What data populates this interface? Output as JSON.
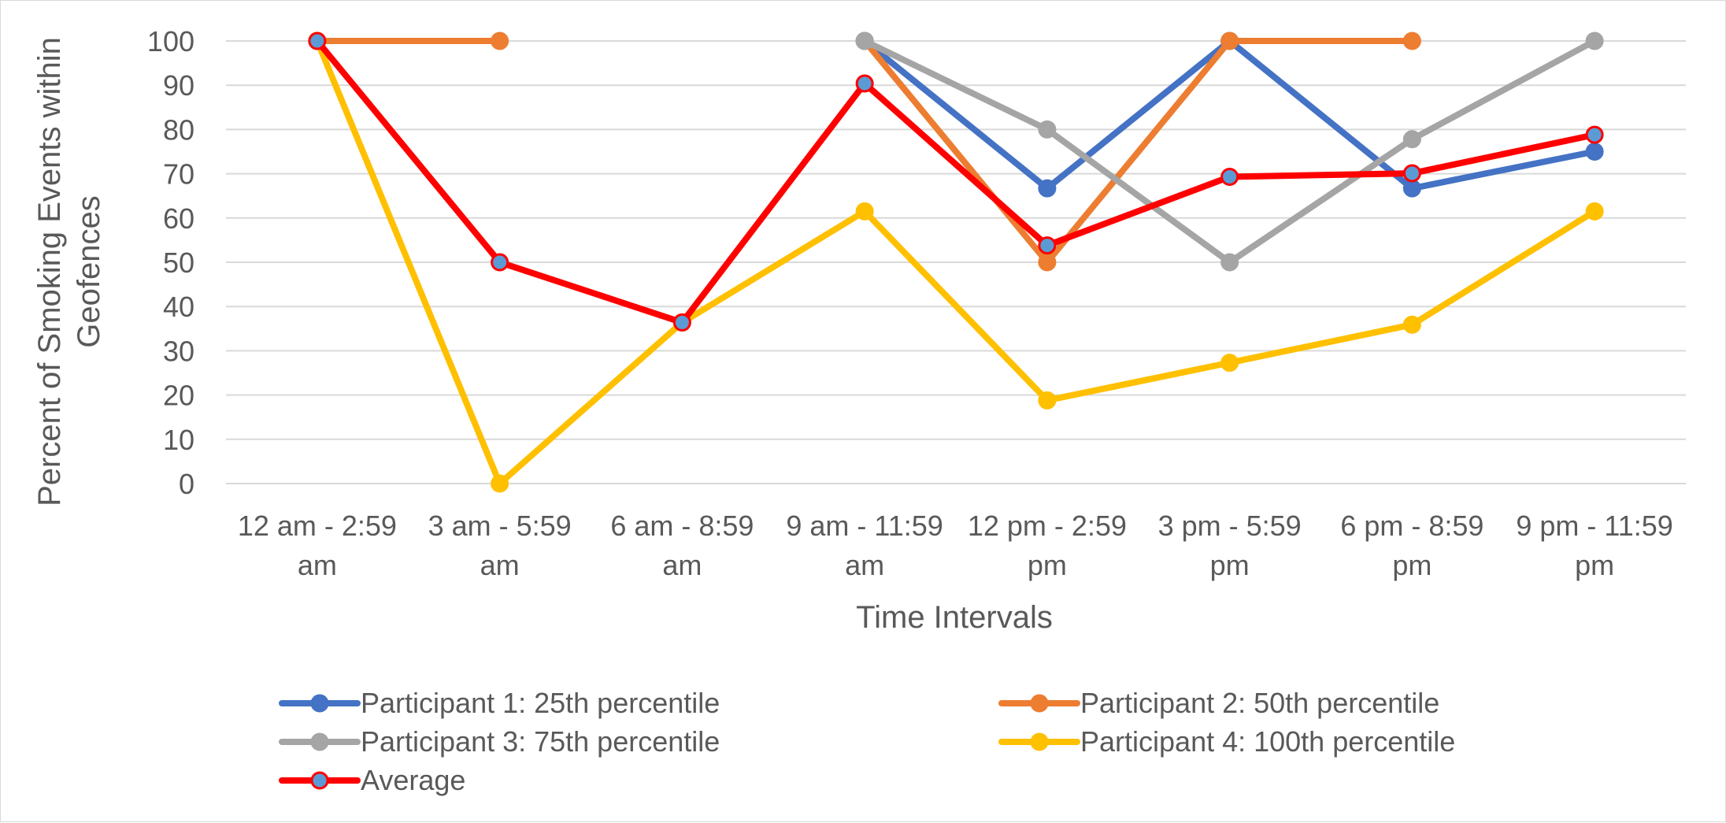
{
  "chart_data": {
    "type": "line",
    "title": "",
    "xlabel": "Time Intervals",
    "ylabel_lines": [
      "Percent of Smoking Events within",
      "Geofences"
    ],
    "ylim": [
      0,
      100
    ],
    "yticks": [
      0,
      10,
      20,
      30,
      40,
      50,
      60,
      70,
      80,
      90,
      100
    ],
    "grid": true,
    "legend_position": "bottom",
    "categories": [
      [
        "12 am - 2:59",
        "am"
      ],
      [
        "3 am - 5:59",
        "am"
      ],
      [
        "6 am - 8:59",
        "am"
      ],
      [
        "9 am - 11:59",
        "am"
      ],
      [
        "12 pm - 2:59",
        "pm"
      ],
      [
        "3 pm - 5:59",
        "pm"
      ],
      [
        "6 pm - 8:59",
        "pm"
      ],
      [
        "9 pm - 11:59",
        "pm"
      ]
    ],
    "series": [
      {
        "name": "Participant 1: 25th percentile",
        "color": "#4472C4",
        "marker_fill": "#4472C4",
        "values": [
          100,
          null,
          null,
          100,
          66.7,
          100,
          66.7,
          75
        ]
      },
      {
        "name": "Participant 2: 50th percentile",
        "color": "#ED7D31",
        "marker_fill": "#ED7D31",
        "values": [
          100,
          100,
          null,
          100,
          50,
          100,
          100,
          null
        ]
      },
      {
        "name": "Participant 3: 75th percentile",
        "color": "#A5A5A5",
        "marker_fill": "#A5A5A5",
        "values": [
          null,
          null,
          null,
          100,
          80,
          50,
          77.8,
          100
        ]
      },
      {
        "name": "Participant 4: 100th percentile",
        "color": "#FFC000",
        "marker_fill": "#FFC000",
        "values": [
          100,
          0,
          36.4,
          61.5,
          18.8,
          27.3,
          35.9,
          61.5
        ]
      },
      {
        "name": "Average",
        "color": "#FF0000",
        "marker_fill": "#5B9BD5",
        "values": [
          100,
          50,
          36.4,
          90.4,
          53.8,
          69.3,
          70.1,
          78.8
        ]
      }
    ]
  }
}
